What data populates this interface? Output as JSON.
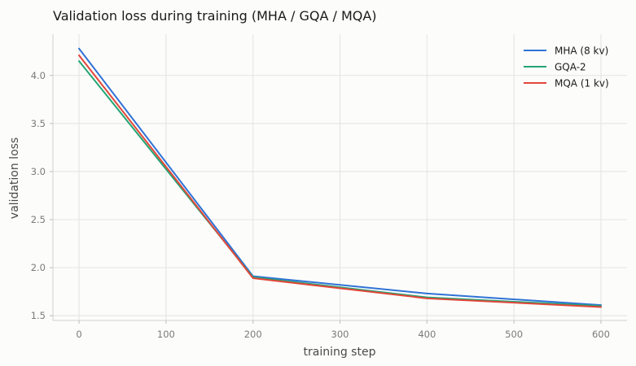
{
  "chart_data": {
    "type": "line",
    "title": "Validation loss during training (MHA / GQA / MQA)",
    "xlabel": "training step",
    "ylabel": "validation loss",
    "x": [
      0,
      200,
      400,
      600
    ],
    "xlim": [
      -30,
      630
    ],
    "ylim": [
      1.45,
      4.43
    ],
    "xticks": [
      0,
      100,
      200,
      300,
      400,
      500,
      600
    ],
    "yticks": [
      1.5,
      2.0,
      2.5,
      3.0,
      3.5,
      4.0
    ],
    "xtick_labels": [
      "0",
      "100",
      "200",
      "300",
      "400",
      "500",
      "600"
    ],
    "ytick_labels": [
      "1.5",
      "2.0",
      "2.5",
      "3.0",
      "3.5",
      "4.0"
    ],
    "grid": true,
    "legend_position": "top-right",
    "series": [
      {
        "name": "MHA (8 kv)",
        "color": "#2f72d6",
        "values": [
          4.28,
          1.91,
          1.73,
          1.61
        ]
      },
      {
        "name": "GQA-2",
        "color": "#22a573",
        "values": [
          4.15,
          1.9,
          1.69,
          1.6
        ]
      },
      {
        "name": "MQA (1 kv)",
        "color": "#e2463a",
        "values": [
          4.21,
          1.89,
          1.68,
          1.59
        ]
      }
    ]
  }
}
